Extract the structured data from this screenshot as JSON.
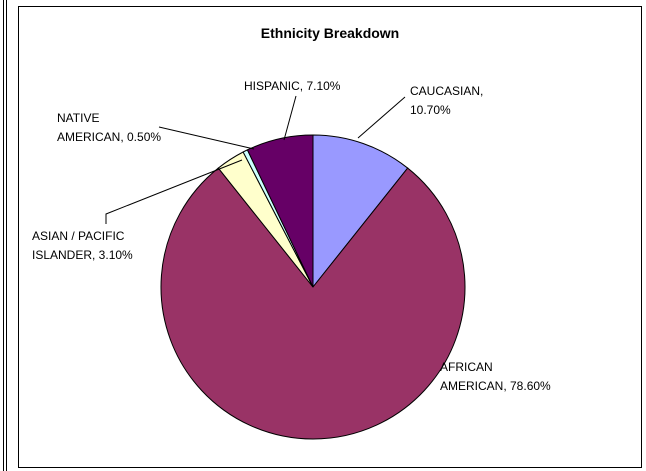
{
  "chart_data": {
    "type": "pie",
    "title": "Ethnicity Breakdown",
    "slices": [
      {
        "label": "CAUCASIAN",
        "value_text": "10.70%",
        "value": 10.7,
        "color": "#9999ff"
      },
      {
        "label": "AFRICAN AMERICAN",
        "value_text": "78.60%",
        "value": 78.6,
        "color": "#993366"
      },
      {
        "label": "ASIAN / PACIFIC ISLANDER",
        "value_text": "3.10%",
        "value": 3.1,
        "color": "#ffffcc"
      },
      {
        "label": "NATIVE AMERICAN",
        "value_text": "0.50%",
        "value": 0.5,
        "color": "#ccffff"
      },
      {
        "label": "HISPANIC",
        "value_text": "7.10%",
        "value": 7.1,
        "color": "#660066"
      }
    ],
    "data_labels": [
      {
        "lines": [
          "CAUCASIAN,",
          "10.70%"
        ]
      },
      {
        "lines": [
          "AFRICAN",
          "AMERICAN, 78.60%"
        ]
      },
      {
        "lines": [
          "ASIAN / PACIFIC",
          "ISLANDER, 3.10%"
        ]
      },
      {
        "lines": [
          "NATIVE",
          "AMERICAN, 0.50%"
        ]
      },
      {
        "lines": [
          "HISPANIC, 7.10%"
        ]
      }
    ],
    "legend": "none"
  }
}
